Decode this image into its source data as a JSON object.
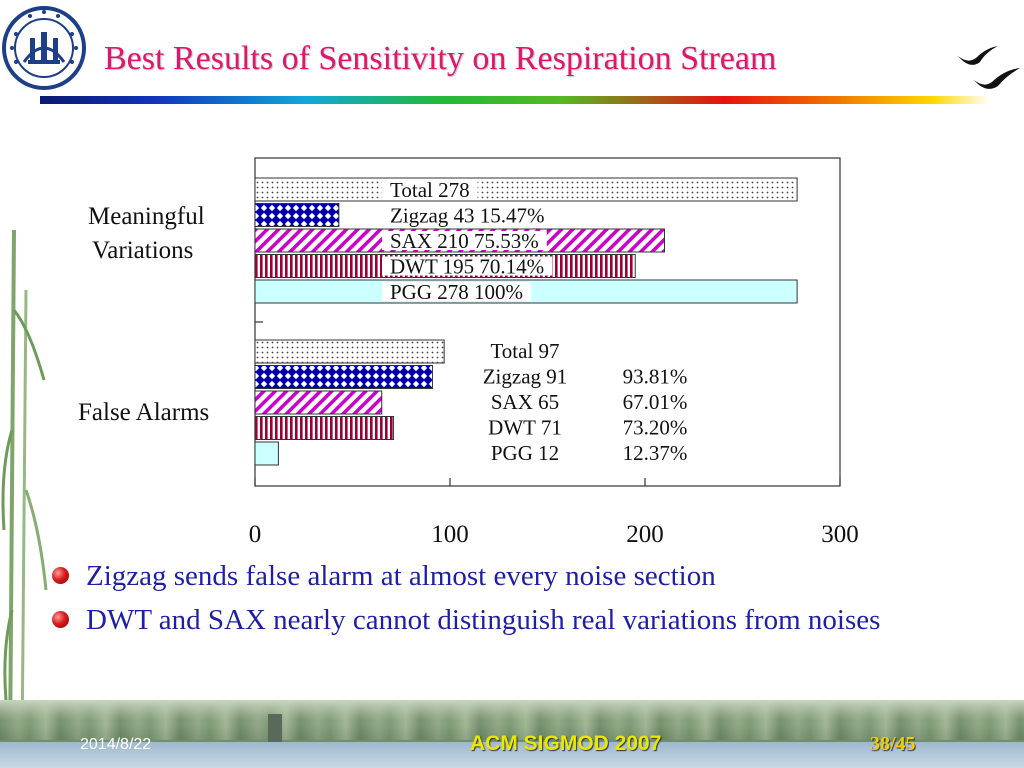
{
  "slide": {
    "title": "Best Results of Sensitivity on Respiration Stream",
    "bullets": [
      "Zigzag sends false alarm at almost every noise section",
      "DWT and SAX nearly cannot distinguish real variations from noises"
    ],
    "footer": {
      "date": "2014/8/22",
      "conference": "ACM SIGMOD 2007",
      "page": "38/45"
    }
  },
  "colors": {
    "title": "#e0166e",
    "bullet_text": "#1f1fa5",
    "pgg_fill": "#ccffff",
    "zigzag": "#0000aa",
    "sax": "#cc00cc",
    "dwt": "#990033"
  },
  "chart_data": {
    "type": "bar",
    "orientation": "horizontal",
    "xlim": [
      0,
      300
    ],
    "xticks": [
      0,
      100,
      200,
      300
    ],
    "grid": false,
    "groups": [
      {
        "label": "Meaningful Variations",
        "bars": [
          {
            "name": "Total",
            "value": 278,
            "pattern": "dots",
            "label": "Total 278"
          },
          {
            "name": "Zigzag",
            "value": 43,
            "pattern": "diamonds",
            "label": "Zigzag 43 15.47%"
          },
          {
            "name": "SAX",
            "value": 210,
            "pattern": "diagonal",
            "label": "SAX 210 75.53%"
          },
          {
            "name": "DWT",
            "value": 195,
            "pattern": "vertical",
            "label": "DWT 195 70.14%"
          },
          {
            "name": "PGG",
            "value": 278,
            "pattern": "solid",
            "label": "PGG 278 100%"
          }
        ]
      },
      {
        "label": "False Alarms",
        "bars": [
          {
            "name": "Total",
            "value": 97,
            "pattern": "dots",
            "label": "Total 97",
            "percent": ""
          },
          {
            "name": "Zigzag",
            "value": 91,
            "pattern": "diamonds",
            "label": "Zigzag 91",
            "percent": "93.81%"
          },
          {
            "name": "SAX",
            "value": 65,
            "pattern": "diagonal",
            "label": "SAX 65",
            "percent": "67.01%"
          },
          {
            "name": "DWT",
            "value": 71,
            "pattern": "vertical",
            "label": "DWT 71",
            "percent": "73.20%"
          },
          {
            "name": "PGG",
            "value": 12,
            "pattern": "solid",
            "label": "PGG 12",
            "percent": "12.37%"
          }
        ]
      }
    ]
  }
}
